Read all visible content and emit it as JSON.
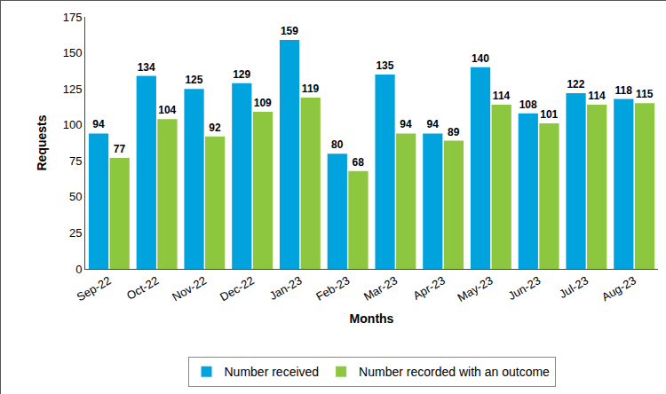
{
  "chart_data": {
    "type": "bar",
    "x_label": "Months",
    "y_label": "Requests",
    "categories": [
      "Sep-22",
      "Oct-22",
      "Nov-22",
      "Dec-22",
      "Jan-23",
      "Feb-23",
      "Mar-23",
      "Apr-23",
      "May-23",
      "Jun-23",
      "Jul-23",
      "Aug-23"
    ],
    "series": [
      {
        "name": "Number received",
        "color": "#00a3dd",
        "values": [
          94,
          134,
          125,
          129,
          159,
          80,
          135,
          94,
          140,
          108,
          122,
          118
        ]
      },
      {
        "name": "Number recorded with an outcome",
        "color": "#8dc63f",
        "values": [
          77,
          104,
          92,
          109,
          119,
          68,
          94,
          89,
          114,
          101,
          114,
          115
        ]
      }
    ],
    "ylim": [
      0,
      175
    ],
    "yticks": [
      0,
      25,
      50,
      75,
      100,
      125,
      150,
      175
    ],
    "grid": false,
    "legend": "bottom",
    "data_labels": true
  }
}
